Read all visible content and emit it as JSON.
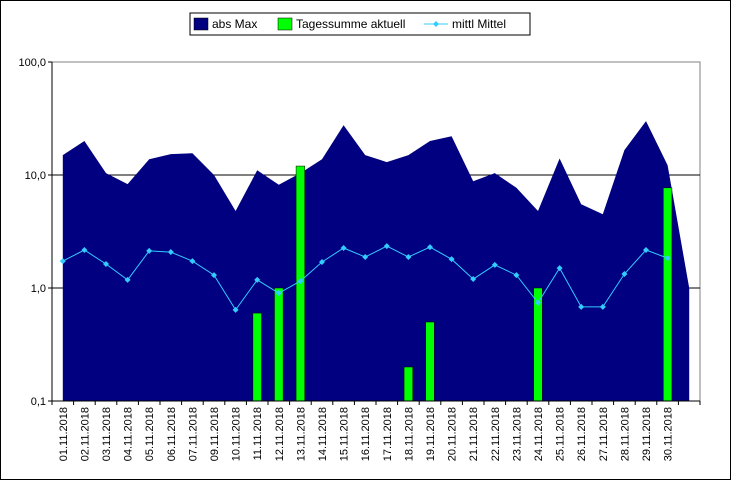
{
  "chart_data": {
    "type": "combo",
    "log_scale": true,
    "grid": true,
    "legend": "top",
    "categories": [
      "01.11.2018",
      "02.11.2018",
      "03.11.2018",
      "04.11.2018",
      "05.11.2018",
      "06.11.2018",
      "07.11.2018",
      "09.11.2018",
      "10.11.2018",
      "11.11.2018",
      "12.11.2018",
      "13.11.2018",
      "14.11.2018",
      "15.11.2018",
      "16.11.2018",
      "17.11.2018",
      "18.11.2018",
      "19.11.2018",
      "20.11.2018",
      "21.11.2018",
      "22.11.2018",
      "23.11.2018",
      "24.11.2018",
      "25.11.2018",
      "26.11.2018",
      "27.11.2018",
      "28.11.2018",
      "29.11.2018",
      "30.11.2018",
      null
    ],
    "ylim": [
      0.1,
      100
    ],
    "yticks": [
      {
        "value": 0.1,
        "label": "0,1"
      },
      {
        "value": 1,
        "label": "1,0"
      },
      {
        "value": 10,
        "label": "10,0"
      },
      {
        "value": 100,
        "label": "100,0"
      }
    ],
    "series": [
      {
        "name": "abs Max",
        "kind": "area",
        "color": "#000080",
        "values": [
          15,
          20,
          10.4,
          8.3,
          13.8,
          15.3,
          15.6,
          10,
          4.8,
          11,
          8.2,
          10.4,
          13.8,
          27.6,
          15,
          13,
          15,
          20,
          22,
          8.8,
          10.4,
          7.7,
          4.8,
          14,
          5.5,
          4.5,
          16.6,
          30,
          12.2,
          1.0
        ]
      },
      {
        "name": "Tagessumme aktuell",
        "kind": "bar",
        "color": "#00ff00",
        "values": [
          null,
          null,
          null,
          null,
          null,
          null,
          null,
          null,
          null,
          0.6,
          1.0,
          12,
          null,
          null,
          null,
          null,
          0.2,
          0.5,
          null,
          null,
          null,
          null,
          1.0,
          null,
          null,
          null,
          null,
          null,
          7.7,
          null
        ]
      },
      {
        "name": "mittl Mittel",
        "kind": "line",
        "color": "#33ccff",
        "values": [
          1.73,
          2.17,
          1.63,
          1.18,
          2.13,
          2.08,
          1.73,
          1.3,
          0.64,
          1.18,
          0.9,
          1.15,
          1.7,
          2.26,
          1.88,
          2.35,
          1.88,
          2.3,
          1.8,
          1.2,
          1.6,
          1.3,
          0.74,
          1.5,
          0.68,
          0.68,
          1.33,
          2.17,
          1.84,
          null
        ]
      }
    ]
  }
}
